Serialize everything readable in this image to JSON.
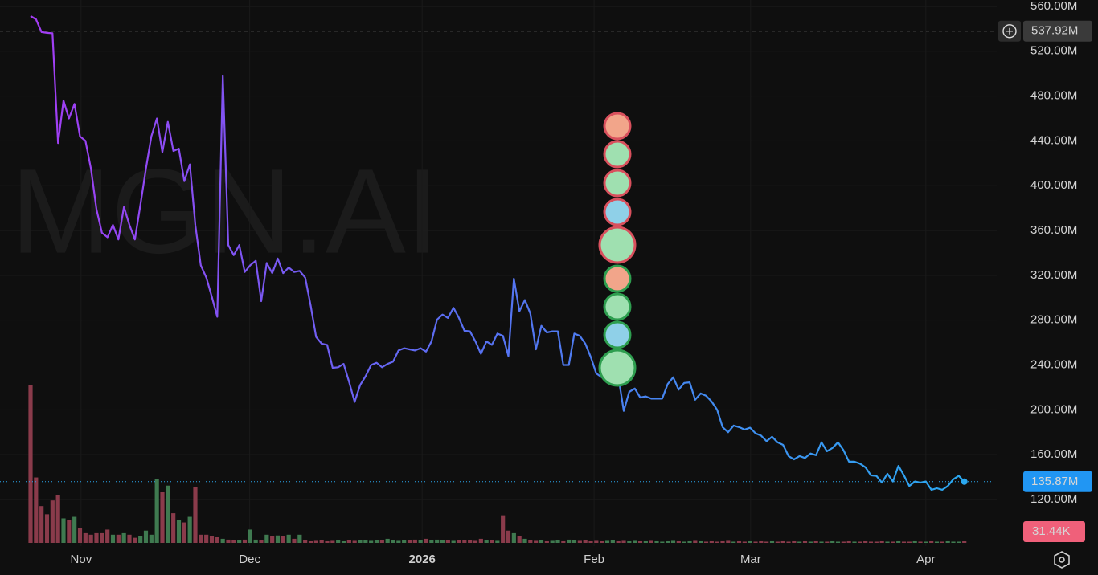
{
  "chart_data": {
    "type": "line",
    "watermark": "MGN.AI",
    "series": [
      {
        "values": [
          551.4,
          548.5,
          537.1,
          536.4,
          536,
          438,
          476,
          460,
          473,
          444,
          440,
          415,
          379,
          358,
          354,
          365,
          352,
          381,
          365,
          352,
          383,
          415,
          444,
          460,
          430,
          457,
          431,
          433,
          404,
          419,
          365,
          329,
          318,
          301,
          283,
          498,
          347,
          338,
          347,
          323,
          329,
          333,
          297,
          331,
          322,
          335,
          322,
          327,
          323,
          324,
          318,
          293,
          265,
          259,
          258,
          237.5,
          238,
          241,
          225,
          207,
          222,
          230,
          240,
          242,
          238,
          241,
          243,
          253,
          255,
          254,
          253,
          255,
          252,
          261,
          280.5,
          285,
          282,
          291,
          282,
          270.5,
          270,
          261,
          250,
          261,
          258,
          268,
          266,
          248,
          317,
          288,
          298,
          286,
          254,
          275,
          269,
          270,
          270,
          240,
          240,
          268,
          266,
          259,
          247,
          232.5,
          229,
          236,
          240,
          230,
          199,
          216,
          219,
          211,
          212,
          210,
          210,
          210,
          223,
          229,
          218,
          224,
          224.5,
          209,
          214.6,
          212.5,
          207.4,
          200,
          184.5,
          180,
          186,
          184.5,
          182.4,
          184,
          179,
          177,
          172,
          176,
          171,
          168.7,
          158.7,
          155.8,
          158.7,
          157,
          161,
          159.5,
          171,
          163,
          166,
          171,
          164,
          153.7,
          153.7,
          152,
          148.7,
          141.5,
          141,
          135,
          143,
          136,
          150,
          141.5,
          132,
          136,
          135,
          136,
          128.6,
          130,
          128.6,
          132,
          138,
          141,
          135.87
        ],
        "colors": [
          "#a43cf4",
          "#5a6ef2",
          "#2ba8f0"
        ]
      }
    ],
    "last_label": "135.87M",
    "volume": {
      "values": [
        3090,
        1280,
        720,
        560,
        830,
        930,
        480,
        450,
        510,
        290,
        190,
        160,
        190,
        190,
        260,
        160,
        160,
        190,
        160,
        100,
        130,
        240,
        160,
        1250,
        990,
        1120,
        580,
        450,
        400,
        510,
        1090,
        160,
        160,
        130,
        110,
        80,
        64,
        48,
        48,
        64,
        260,
        64,
        48,
        160,
        130,
        145,
        130,
        160,
        80,
        160,
        48,
        32,
        40,
        48,
        32,
        40,
        48,
        32,
        48,
        40,
        56,
        48,
        40,
        48,
        56,
        80,
        48,
        40,
        48,
        56,
        64,
        48,
        80,
        48,
        64,
        56,
        48,
        40,
        48,
        56,
        48,
        40,
        80,
        56,
        48,
        40,
        540,
        240,
        190,
        130,
        80,
        48,
        40,
        48,
        32,
        40,
        48,
        32,
        64,
        48,
        40,
        48,
        32,
        40,
        32,
        40,
        48,
        32,
        40,
        32,
        40,
        32,
        32,
        40,
        32,
        24,
        32,
        40,
        32,
        24,
        32,
        40,
        32,
        24,
        32,
        24,
        32,
        40,
        24,
        32,
        24,
        32,
        24,
        32,
        24,
        32,
        24,
        32,
        24,
        32,
        24,
        32,
        24,
        32,
        24,
        24,
        32,
        24,
        24,
        32,
        24,
        24,
        32,
        24,
        24,
        32,
        24,
        24,
        32,
        24,
        24,
        32,
        24,
        24,
        32,
        24,
        24,
        32,
        24,
        24,
        31.44
      ],
      "up_color": "#3f7a50",
      "down_color": "#8a3b4b",
      "last_label": "31.44K",
      "vlim": [
        0,
        3300
      ]
    },
    "crosshair": {
      "value": 537.92,
      "label": "537.92M"
    },
    "ylim": [
      78.4,
      565.7
    ],
    "yticks": [
      {
        "value": 120,
        "label": "120.00M"
      },
      {
        "value": 160,
        "label": "160.00M"
      },
      {
        "value": 200,
        "label": "200.00M"
      },
      {
        "value": 240,
        "label": "240.00M"
      },
      {
        "value": 280,
        "label": "280.00M"
      },
      {
        "value": 320,
        "label": "320.00M"
      },
      {
        "value": 360,
        "label": "360.00M"
      },
      {
        "value": 400,
        "label": "400.00M"
      },
      {
        "value": 440,
        "label": "440.00M"
      },
      {
        "value": 480,
        "label": "480.00M"
      },
      {
        "value": 520,
        "label": "520.00M"
      },
      {
        "value": 560,
        "label": "560.00M"
      }
    ],
    "xlim": [
      -5.56,
      175.9
    ],
    "xticks": [
      {
        "value": 9.2,
        "label": "Nov"
      },
      {
        "value": 39.9,
        "label": "Dec"
      },
      {
        "value": 71.3,
        "label": "2026"
      },
      {
        "value": 102.6,
        "label": "Feb"
      },
      {
        "value": 131.1,
        "label": "Mar"
      },
      {
        "value": 163,
        "label": "Apr"
      }
    ],
    "grid": true
  }
}
